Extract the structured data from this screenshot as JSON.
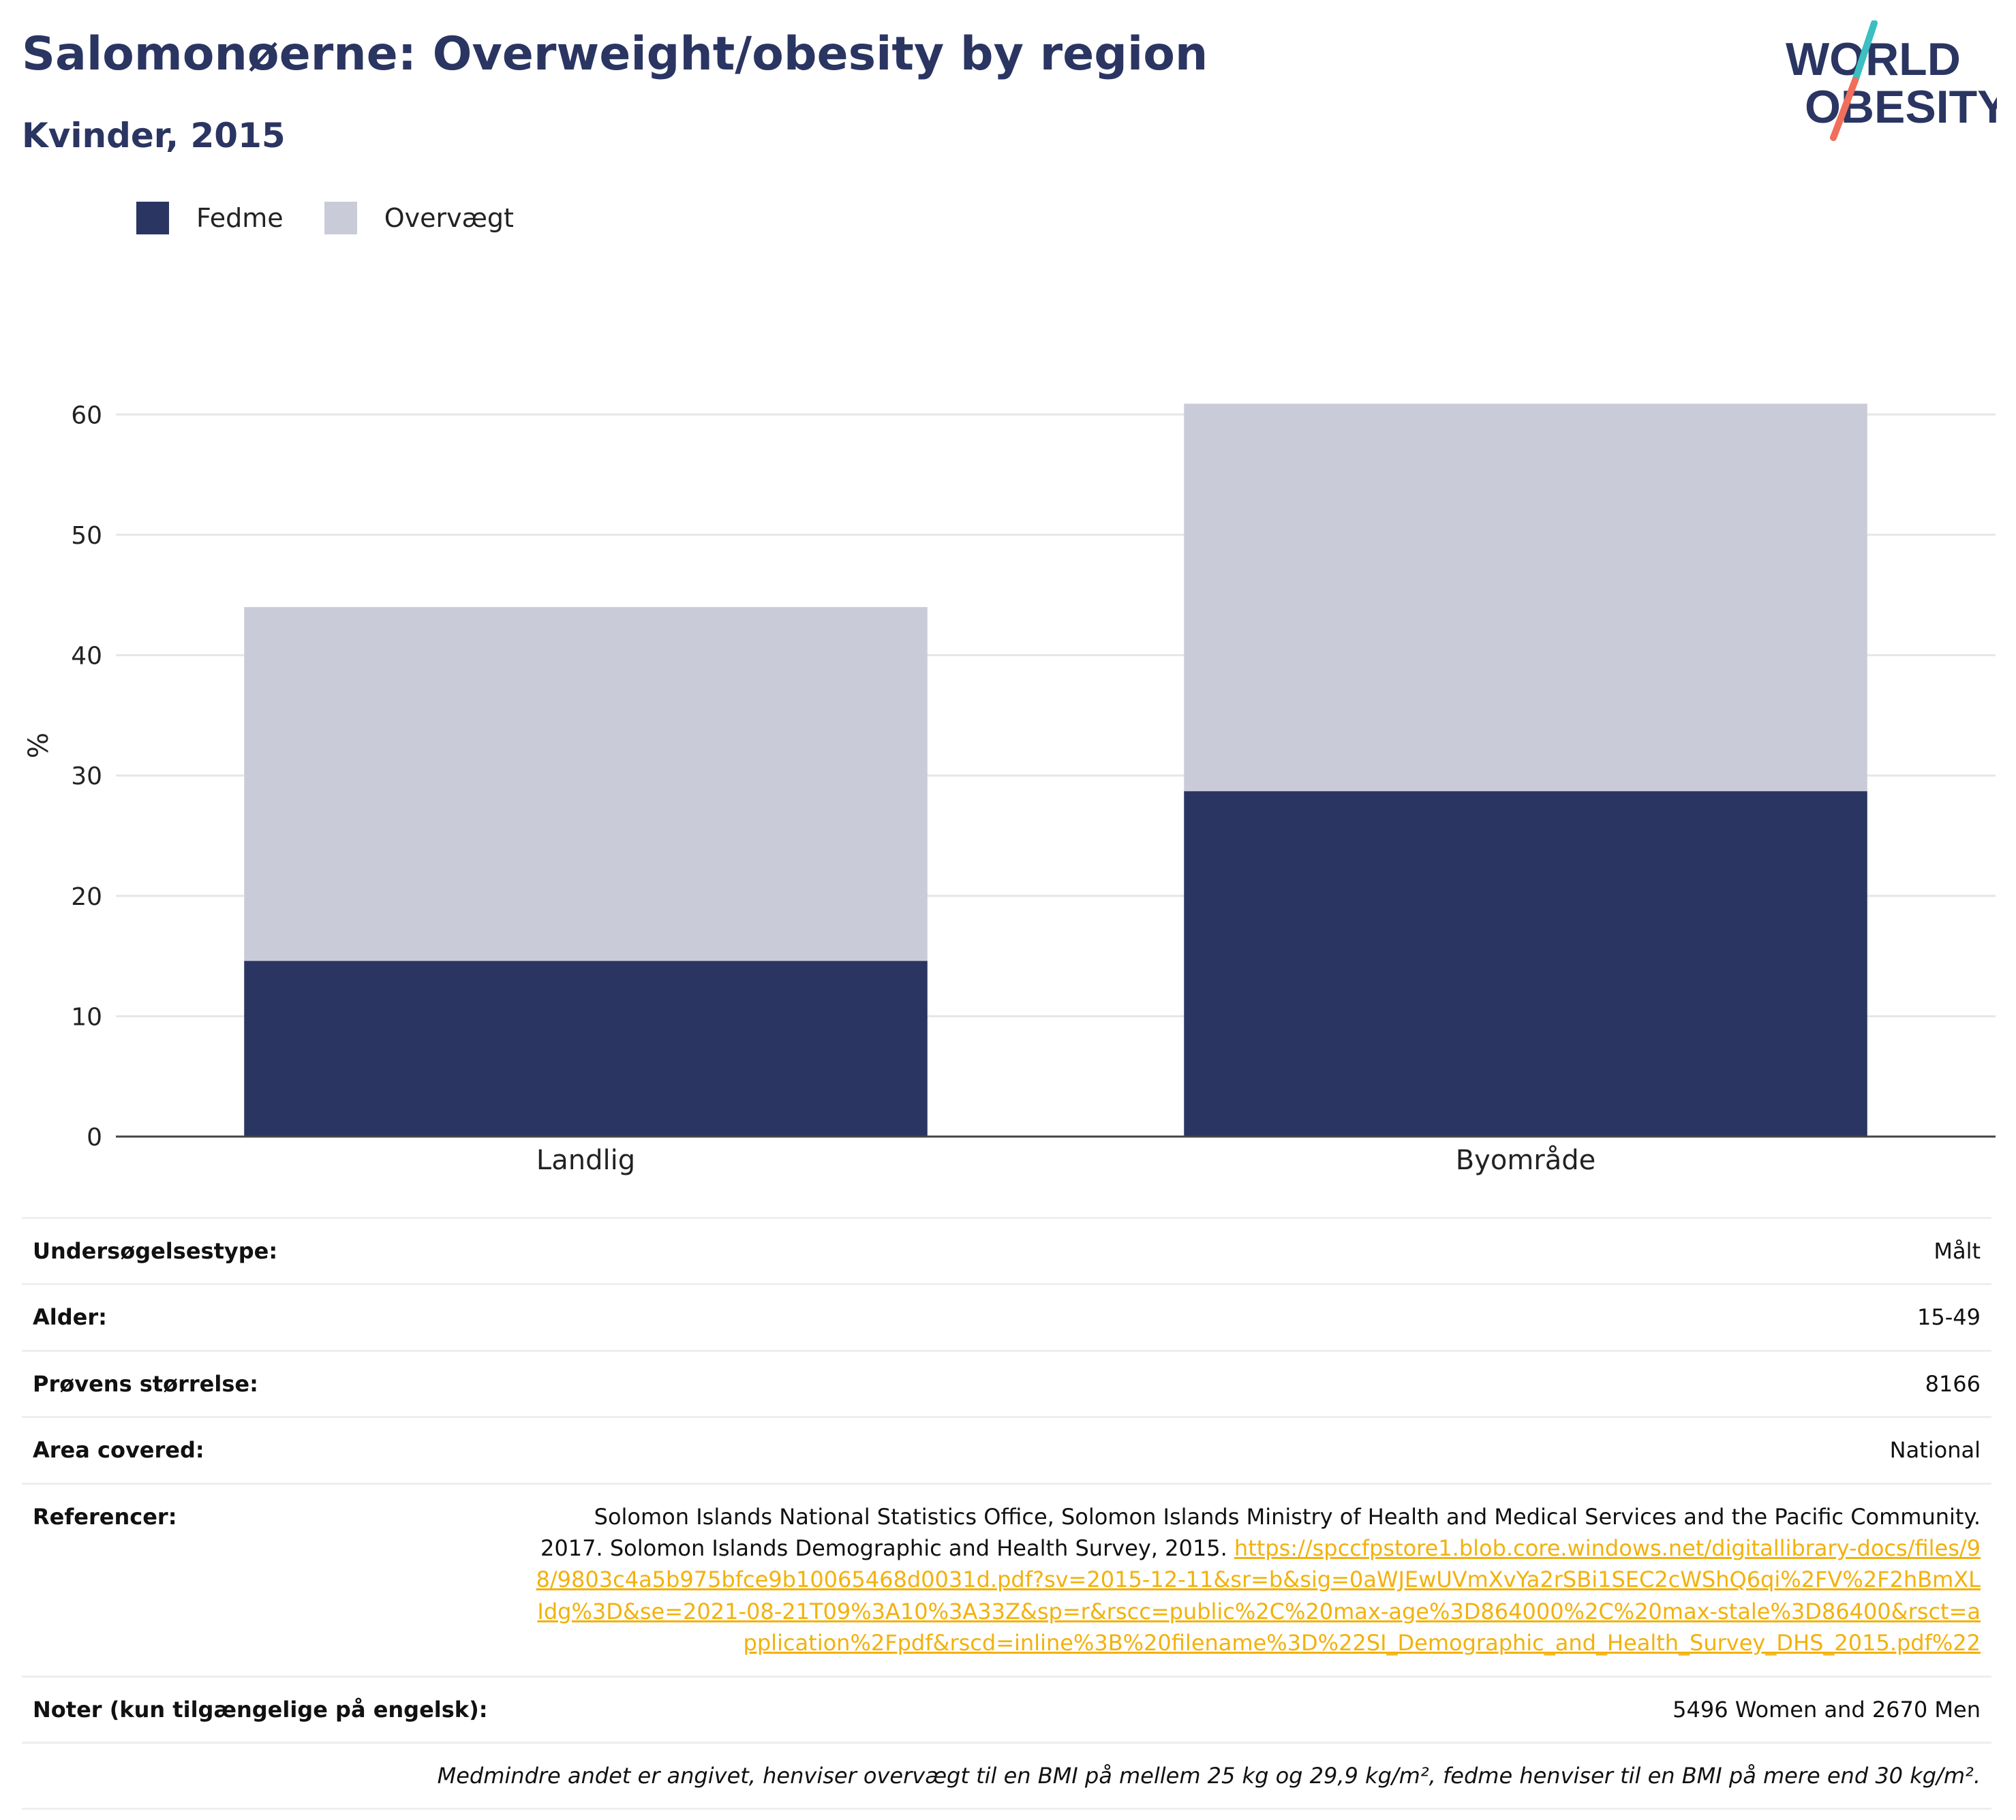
{
  "header": {
    "title": "Salomonøerne: Overweight/obesity by region",
    "subtitle": "Kvinder, 2015"
  },
  "logo": {
    "line1": "WORLD",
    "line2": "OBESITY",
    "accent_colors": [
      "#3bbfc1",
      "#f06e5a"
    ]
  },
  "legend": {
    "items": [
      {
        "label": "Fedme",
        "color": "#2a3562"
      },
      {
        "label": "Overvægt",
        "color": "#c9ccd8"
      }
    ]
  },
  "chart_data": {
    "type": "bar",
    "stacked": true,
    "categories": [
      "Landlig",
      "Byområde"
    ],
    "series": [
      {
        "name": "Fedme",
        "color": "#2a3562",
        "values": [
          14.6,
          28.7
        ]
      },
      {
        "name": "Overvægt",
        "color": "#c9ccd8",
        "values": [
          29.4,
          32.2
        ]
      }
    ],
    "ylabel": "%",
    "ylim": [
      0,
      65
    ],
    "yticks": [
      0,
      10,
      20,
      30,
      40,
      50,
      60
    ],
    "grid": true,
    "legend_position": "top-left"
  },
  "info": {
    "survey_type_label": "Undersøgelsestype:",
    "survey_type_value": "Målt",
    "age_label": "Alder:",
    "age_value": "15-49",
    "sample_label": "Prøvens størrelse:",
    "sample_value": "8166",
    "area_label": "Area covered:",
    "area_value": "National",
    "references_label": "Referencer:",
    "references_text": "Solomon Islands National Statistics Office, Solomon Islands Ministry of Health and Medical Services and the Pacific Community. 2017. Solomon Islands Demographic and Health Survey, 2015. ",
    "references_link": "https://spccfpstore1.blob.core.windows.net/digitallibrary-docs/files/98/9803c4a5b975bfce9b10065468d0031d.pdf?sv=2015-12-11&sr=b&sig=0aWJEwUVmXvYa2rSBi1SEC2cWShQ6qi%2FV%2F2hBmXLIdg%3D&se=2021-08-21T09%3A10%3A33Z&sp=r&rscc=public%2C%20max-age%3D864000%2C%20max-stale%3D86400&rsct=application%2Fpdf&rscd=inline%3B%20filename%3D%22SI_Demographic_and_Health_Survey_DHS_2015.pdf%22",
    "notes_label": "Noter (kun tilgængelige på engelsk):",
    "notes_value": "5496 Women and 2670 Men",
    "footnote": "Medmindre andet er angivet, henviser overvægt til en BMI på mellem 25 kg og 29,9 kg/m², fedme henviser til en BMI på mere end 30 kg/m²."
  }
}
